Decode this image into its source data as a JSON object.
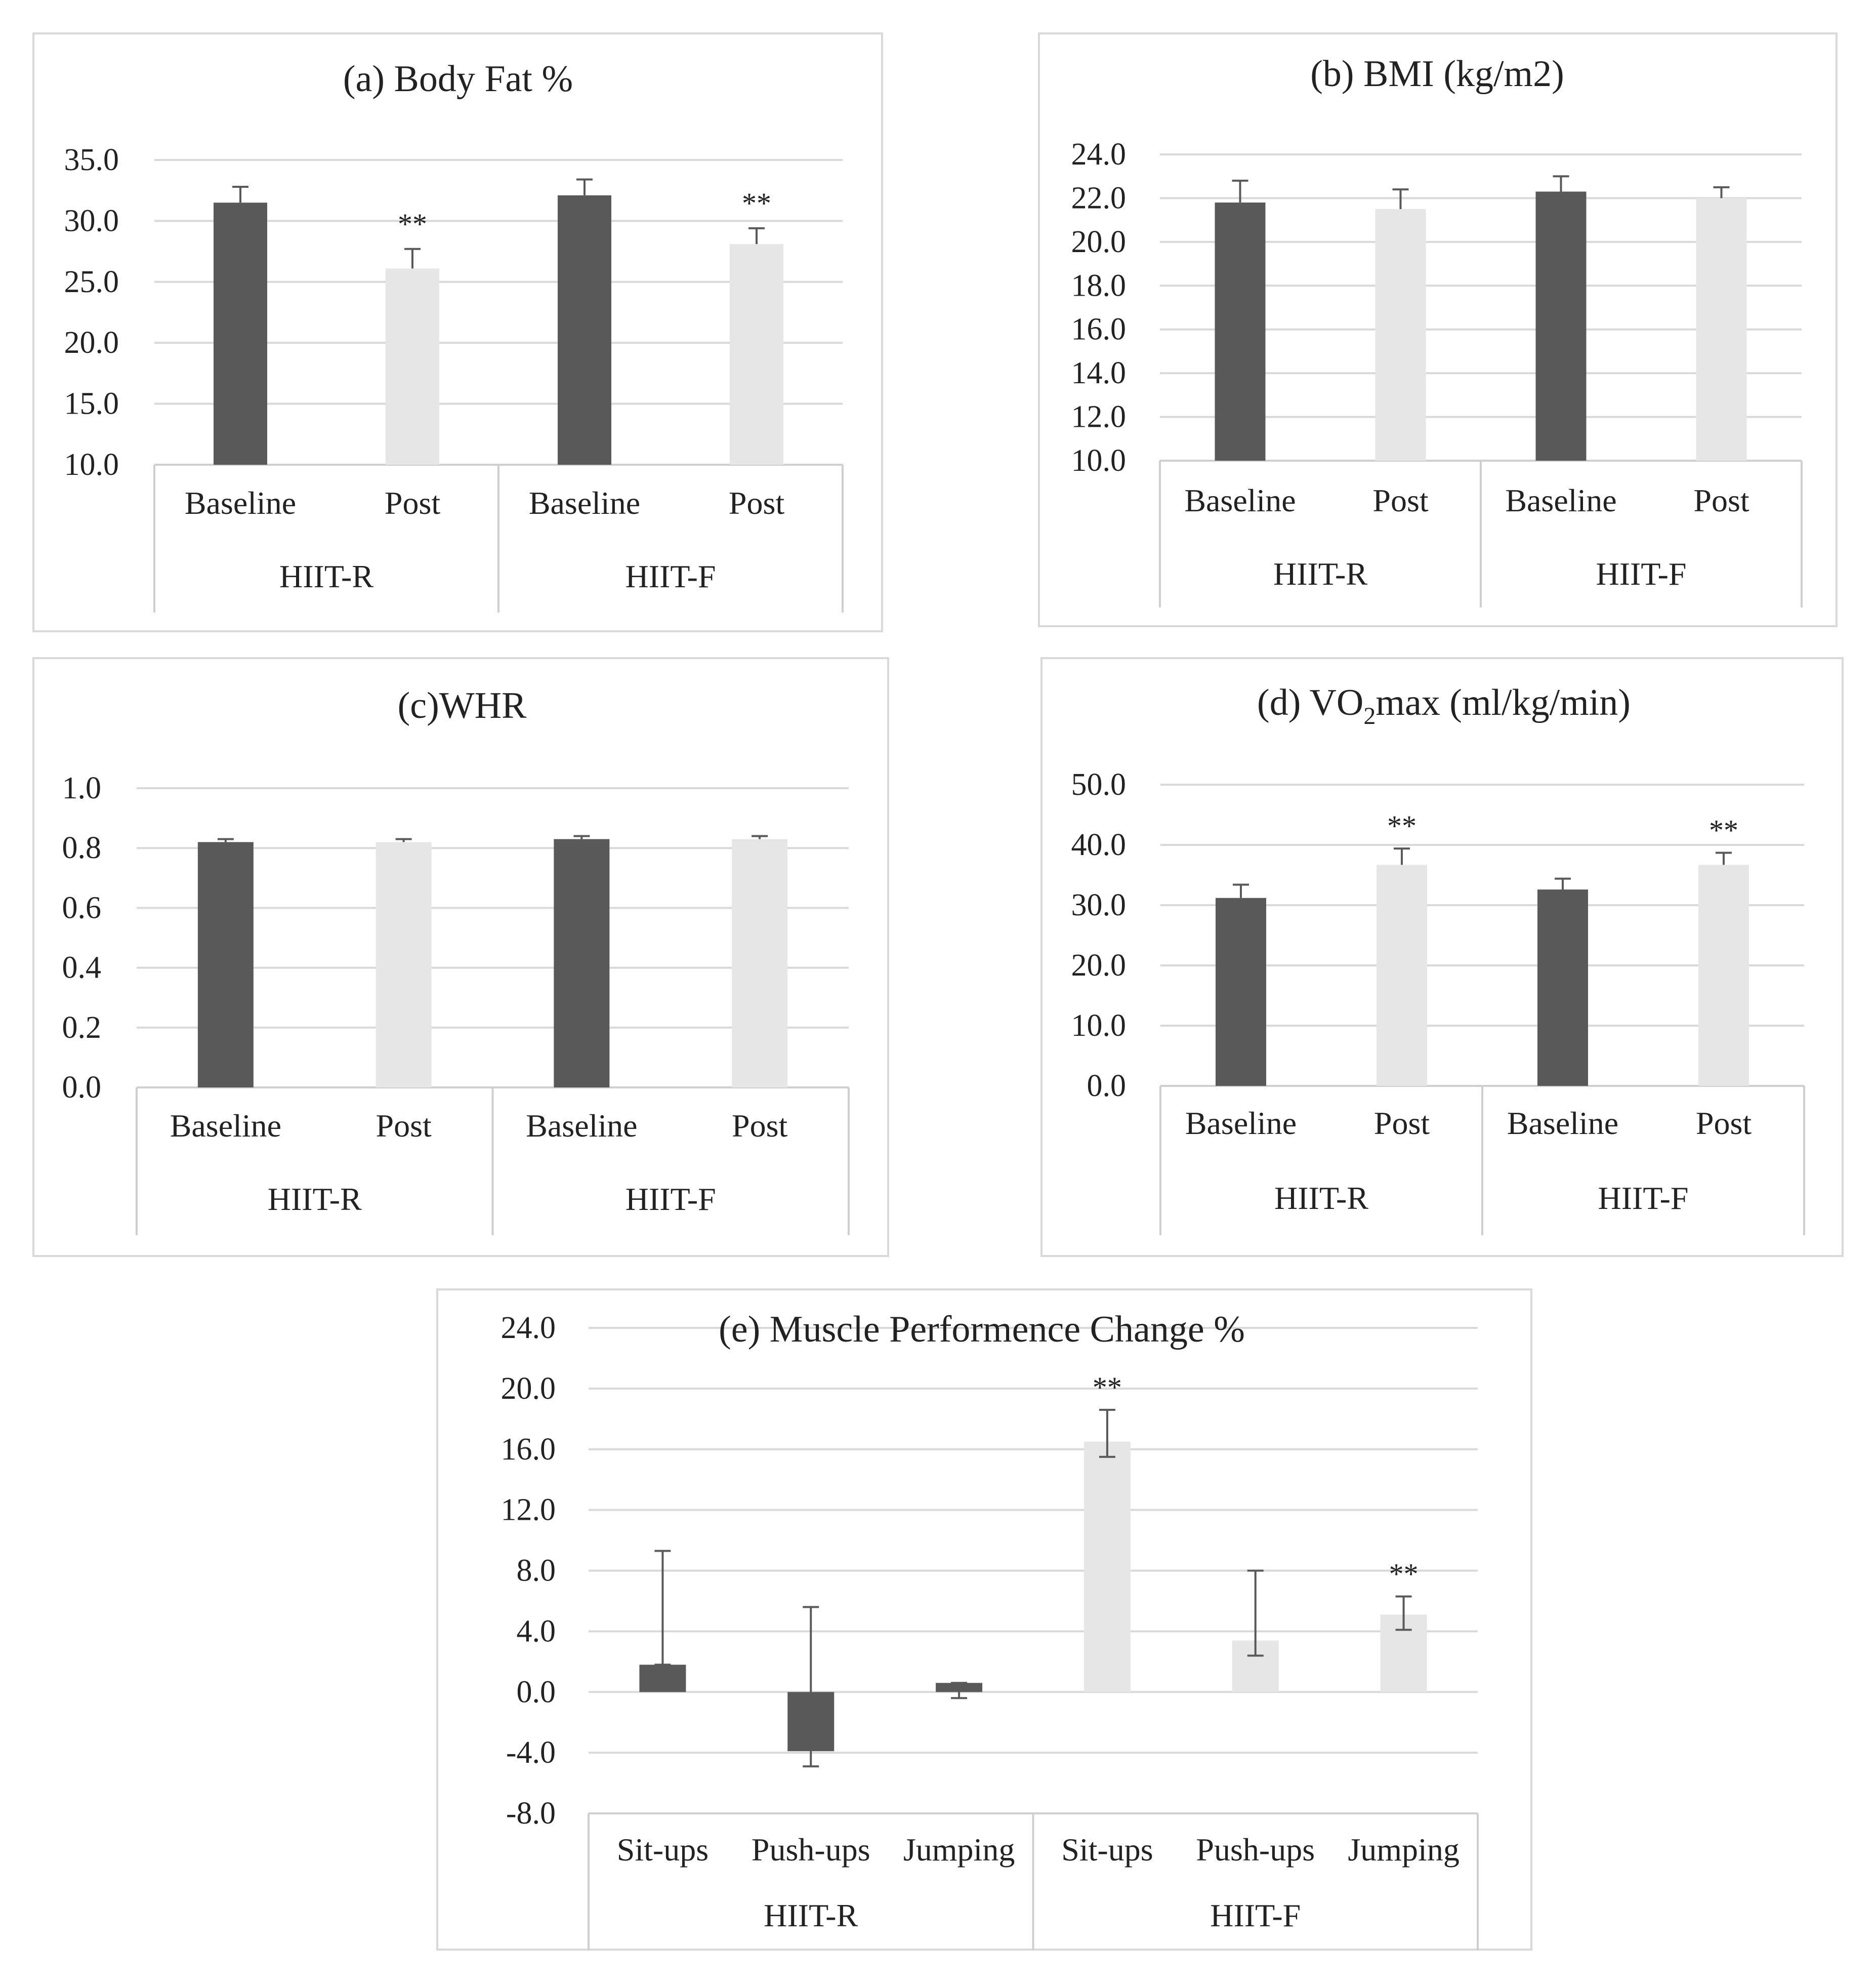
{
  "colors": {
    "baseline": "#595959",
    "post": "#e6e6e6",
    "grid": "#d9d9d9",
    "axis": "#cfcfcf",
    "error": "#595959",
    "text": "#222222"
  },
  "chart_data": [
    {
      "id": "a",
      "type": "bar",
      "title": "(a) Body Fat %",
      "groups": [
        "HIIT-R",
        "HIIT-F"
      ],
      "categories": [
        "Baseline",
        "Post",
        "Baseline",
        "Post"
      ],
      "tick_labels": [
        "35.0",
        "30.0",
        "25.0",
        "20.0",
        "15.0",
        "10.0"
      ],
      "ylim": [
        10,
        35
      ],
      "yticks": [
        35,
        30,
        25,
        20,
        15,
        10
      ],
      "values": [
        31.5,
        26.1,
        32.1,
        28.1
      ],
      "errors": [
        1.3,
        1.6,
        1.3,
        1.3
      ],
      "series_of_bar": [
        "baseline",
        "post",
        "baseline",
        "post"
      ],
      "significance": [
        "",
        "**",
        "",
        "**"
      ]
    },
    {
      "id": "b",
      "type": "bar",
      "title": "(b) BMI (kg/m2)",
      "groups": [
        "HIIT-R",
        "HIIT-F"
      ],
      "categories": [
        "Baseline",
        "Post",
        "Baseline",
        "Post"
      ],
      "tick_labels": [
        "24.0",
        "22.0",
        "20.0",
        "18.0",
        "16.0",
        "14.0",
        "12.0",
        "10.0"
      ],
      "ylim": [
        10,
        24
      ],
      "yticks": [
        24,
        22,
        20,
        18,
        16,
        14,
        12,
        10
      ],
      "values": [
        21.8,
        21.5,
        22.3,
        22.0
      ],
      "errors": [
        1.0,
        0.9,
        0.7,
        0.5
      ],
      "series_of_bar": [
        "baseline",
        "post",
        "baseline",
        "post"
      ],
      "significance": [
        "",
        "",
        "",
        ""
      ]
    },
    {
      "id": "c",
      "type": "bar",
      "title": "(c)WHR",
      "groups": [
        "HIIT-R",
        "HIIT-F"
      ],
      "categories": [
        "Baseline",
        "Post",
        "Baseline",
        "Post"
      ],
      "tick_labels": [
        "1.0",
        "0.8",
        "0.6",
        "0.4",
        "0.2",
        "0.0"
      ],
      "ylim": [
        0,
        1
      ],
      "yticks": [
        1.0,
        0.8,
        0.6,
        0.4,
        0.2,
        0.0
      ],
      "values": [
        0.82,
        0.82,
        0.83,
        0.83
      ],
      "errors": [
        0.01,
        0.01,
        0.01,
        0.01
      ],
      "series_of_bar": [
        "baseline",
        "post",
        "baseline",
        "post"
      ],
      "significance": [
        "",
        "",
        "",
        ""
      ]
    },
    {
      "id": "d",
      "type": "bar",
      "title_parts": [
        "(d) VO",
        "2",
        "max (ml/kg/min)"
      ],
      "groups": [
        "HIIT-R",
        "HIIT-F"
      ],
      "categories": [
        "Baseline",
        "Post",
        "Baseline",
        "Post"
      ],
      "tick_labels": [
        "50.0",
        "40.0",
        "30.0",
        "20.0",
        "10.0",
        "0.0"
      ],
      "ylim": [
        0,
        50
      ],
      "yticks": [
        50,
        40,
        30,
        20,
        10,
        0
      ],
      "values": [
        31.2,
        36.7,
        32.6,
        36.7
      ],
      "errors": [
        2.2,
        2.7,
        1.8,
        2.0
      ],
      "series_of_bar": [
        "baseline",
        "post",
        "baseline",
        "post"
      ],
      "significance": [
        "",
        "**",
        "",
        "**"
      ]
    },
    {
      "id": "e",
      "type": "bar",
      "title": "(e) Muscle Performence Change %",
      "groups": [
        "HIIT-R",
        "HIIT-F"
      ],
      "categories": [
        "Sit-ups",
        "Push-ups",
        "Jumping",
        "Sit-ups",
        "Push-ups",
        "Jumping"
      ],
      "tick_labels": [
        "24.0",
        "20.0",
        "16.0",
        "12.0",
        "8.0",
        "4.0",
        "0.0",
        "-4.0",
        "-8.0"
      ],
      "ylim": [
        -8,
        24
      ],
      "yticks": [
        24,
        20,
        16,
        12,
        8,
        4,
        0,
        -4,
        -8
      ],
      "values": [
        1.8,
        -3.9,
        0.6,
        16.5,
        3.4,
        5.1
      ],
      "errors": [
        7.5,
        10.5,
        1.0,
        3.1,
        5.6,
        2.2
      ],
      "error_lower_ends": [
        1.8,
        -4.9,
        -0.4,
        15.5,
        2.4,
        4.1
      ],
      "series_of_bar": [
        "baseline",
        "baseline",
        "baseline",
        "post",
        "post",
        "post"
      ],
      "significance": [
        "",
        "",
        "",
        "**",
        "",
        "**"
      ]
    }
  ]
}
